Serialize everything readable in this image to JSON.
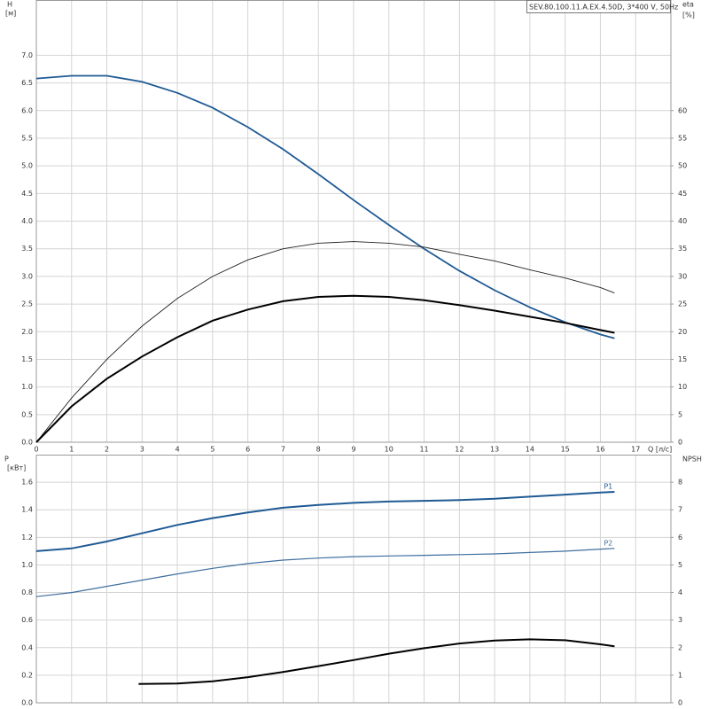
{
  "chart_data": [
    {
      "type": "line",
      "title": "SEV.80.100.11.A.EX.4.50D, 3*400 V, 50Hz",
      "y_label": "H",
      "y_unit": "[м]",
      "y2_label": "eta",
      "y2_unit": "[%]",
      "x_label": "Q [л/с]",
      "xlim": [
        0,
        18
      ],
      "xticks": [
        0,
        1,
        2,
        3,
        4,
        5,
        6,
        7,
        8,
        9,
        10,
        11,
        12,
        13,
        14,
        15,
        16,
        17
      ],
      "ylim": [
        0,
        8
      ],
      "yticks": [
        {
          "value": 0,
          "label": "0.0"
        },
        0.5,
        {
          "value": 1,
          "label": "1.0"
        },
        1.5,
        {
          "value": 2,
          "label": "2.0"
        },
        2.5,
        {
          "value": 3,
          "label": "3.0"
        },
        3.5,
        {
          "value": 4,
          "label": "4.0"
        },
        4.5,
        {
          "value": 5,
          "label": "5.0"
        },
        5.5,
        {
          "value": 6,
          "label": "6.0"
        },
        6.5,
        {
          "value": 7,
          "label": "7.0"
        }
      ],
      "y2lim": [
        0,
        80
      ],
      "y2ticks": [
        0,
        5,
        10,
        15,
        20,
        25,
        30,
        35,
        40,
        45,
        50,
        55,
        60
      ],
      "grid": true,
      "x": [
        0,
        1,
        2,
        3,
        4,
        5,
        6,
        7,
        8,
        9,
        10,
        11,
        12,
        13,
        14,
        15,
        16,
        16.4
      ],
      "series": [
        {
          "color": "#1f5a94",
          "values": [
            6.58,
            6.63,
            6.63,
            6.52,
            6.32,
            6.05,
            5.7,
            5.3,
            4.85,
            4.38,
            3.93,
            3.5,
            3.1,
            2.75,
            2.44,
            2.17,
            1.95,
            1.88
          ]
        },
        {
          "color": "#222222",
          "axis": "y2",
          "values": [
            0,
            8,
            15,
            21,
            26,
            30,
            33,
            35,
            36,
            36.3,
            36,
            35.3,
            34,
            32.8,
            31.2,
            29.7,
            28,
            27
          ]
        },
        {
          "color": "#000000",
          "axis": "y2",
          "values": [
            0,
            6.5,
            11.5,
            15.5,
            19,
            22,
            24,
            25.5,
            26.3,
            26.5,
            26.3,
            25.7,
            24.8,
            23.8,
            22.7,
            21.6,
            20.3,
            19.8
          ]
        }
      ]
    },
    {
      "type": "line",
      "y_label": "P",
      "y_unit": "[кВт]",
      "y2_label": "NPSH",
      "xlim": [
        0,
        18
      ],
      "ylim": [
        0,
        1.8
      ],
      "yticks": [
        {
          "value": 0,
          "label": "0.0"
        },
        0.2,
        0.4,
        0.6,
        0.8,
        {
          "value": 1,
          "label": "1.0"
        },
        1.2,
        1.4,
        1.6
      ],
      "y2lim": [
        0,
        9
      ],
      "y2ticks": [
        0,
        1,
        2,
        3,
        4,
        5,
        6,
        7,
        8
      ],
      "grid": true,
      "series": [
        {
          "name": "P1",
          "color": "#1f5a94",
          "x": [
            0,
            1,
            2,
            3,
            4,
            5,
            6,
            7,
            8,
            9,
            10,
            11,
            12,
            13,
            14,
            15,
            16,
            16.4
          ],
          "values": [
            1.1,
            1.12,
            1.17,
            1.23,
            1.29,
            1.34,
            1.38,
            1.415,
            1.435,
            1.45,
            1.46,
            1.465,
            1.47,
            1.48,
            1.495,
            1.51,
            1.525,
            1.53
          ]
        },
        {
          "name": "P2",
          "color": "#3f6f9f",
          "x": [
            0,
            1,
            2,
            3,
            4,
            5,
            6,
            7,
            8,
            9,
            10,
            11,
            12,
            13,
            14,
            15,
            16,
            16.4
          ],
          "values": [
            0.77,
            0.8,
            0.845,
            0.89,
            0.935,
            0.975,
            1.01,
            1.035,
            1.05,
            1.06,
            1.065,
            1.07,
            1.075,
            1.08,
            1.09,
            1.1,
            1.115,
            1.12
          ]
        },
        {
          "color": "#000000",
          "axis": "y2",
          "x": [
            2.9,
            4,
            5,
            6,
            7,
            8,
            9,
            10,
            11,
            12,
            13,
            14,
            15,
            16,
            16.4
          ],
          "values": [
            0.68,
            0.7,
            0.78,
            0.93,
            1.12,
            1.33,
            1.55,
            1.78,
            1.98,
            2.15,
            2.26,
            2.3,
            2.27,
            2.12,
            2.05
          ]
        }
      ]
    }
  ]
}
